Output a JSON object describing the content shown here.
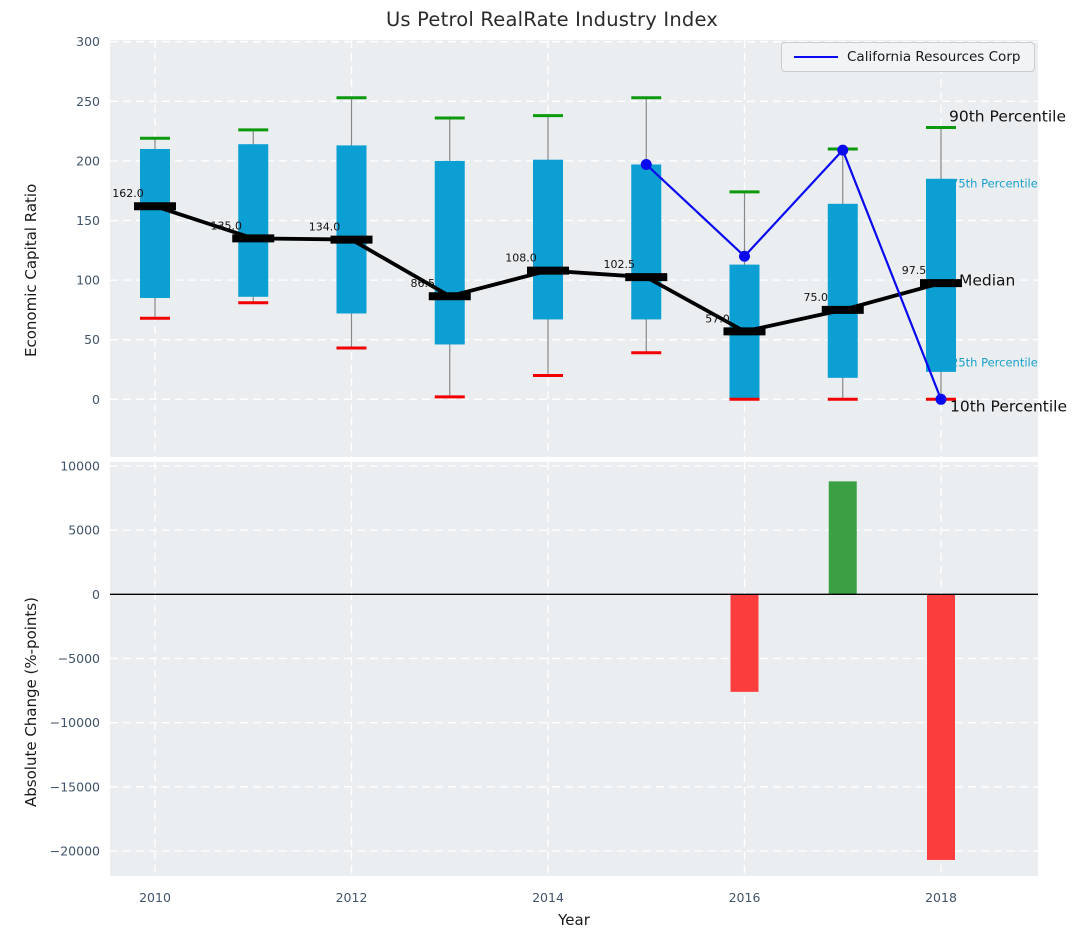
{
  "title": "Us Petrol RealRate Industry Index",
  "colors": {
    "box_fill": "#0b9fd3",
    "cap_top_green": "#0d990d",
    "cap_bottom_red": "#f20000",
    "whisker": "#888888",
    "median_black": "#000000",
    "company_line_blue": "#0a0af0",
    "bar_negative_red": "#fb3d3d",
    "bar_positive_green": "#3ba044",
    "plot_background": "#ebeef0",
    "gridline": "#ffffff",
    "tick_label": "#415469",
    "annotation_cyan": "#18a0cc"
  },
  "chart_data": [
    {
      "type": "box",
      "title": "Us Petrol RealRate Industry Index",
      "ylabel": "Economic Capital Ratio",
      "ylim": [
        -48,
        303
      ],
      "yticks": [
        0,
        50,
        100,
        150,
        200,
        250,
        300
      ],
      "grid": true,
      "categories": [
        2010,
        2011,
        2012,
        2013,
        2014,
        2015,
        2016,
        2017,
        2018
      ],
      "series": [
        {
          "name": "90th Percentile",
          "values": [
            219,
            226,
            253,
            236,
            238,
            253,
            174,
            210,
            228
          ]
        },
        {
          "name": "75th Percentile",
          "values": [
            210,
            214,
            213,
            200,
            201,
            197,
            113,
            164,
            185
          ]
        },
        {
          "name": "Median",
          "values": [
            162,
            135,
            134,
            86.5,
            108,
            102.5,
            57,
            75,
            97.5
          ]
        },
        {
          "name": "25th Percentile",
          "values": [
            85,
            86,
            72,
            46,
            67,
            67,
            1,
            18,
            23
          ]
        },
        {
          "name": "10th Percentile",
          "values": [
            68,
            81,
            43,
            2,
            20,
            39,
            0,
            0,
            0
          ]
        }
      ],
      "median_labels": [
        "162.0",
        "135.0",
        "134.0",
        "86.5",
        "108.0",
        "102.5",
        "57.0",
        "75.0",
        "97.5"
      ],
      "overlay_line": {
        "name": "California Resources Corp",
        "x": [
          2015,
          2016,
          2017,
          2018
        ],
        "values": [
          197,
          120,
          209,
          0
        ]
      },
      "legend_position": "upper right",
      "right_labels": {
        "p90": "90th Percentile",
        "p75": "75th Percentile",
        "median": "Median",
        "p25": "25th Percentile",
        "p10": "10th Percentile"
      }
    },
    {
      "type": "bar",
      "xlabel": "Year",
      "ylabel": "Absolute Change (%-points)",
      "ylim": [
        -22000,
        10400
      ],
      "yticks": [
        10000,
        5000,
        0,
        -5000,
        -10000,
        -15000,
        -20000
      ],
      "xticks": [
        2010,
        2012,
        2014,
        2016,
        2018
      ],
      "grid": true,
      "categories": [
        2016,
        2017,
        2018
      ],
      "values": [
        -7600,
        8800,
        -20700
      ],
      "bar_colors": [
        "#fb3d3d",
        "#3ba044",
        "#fb3d3d"
      ],
      "zero_line": 0
    }
  ]
}
